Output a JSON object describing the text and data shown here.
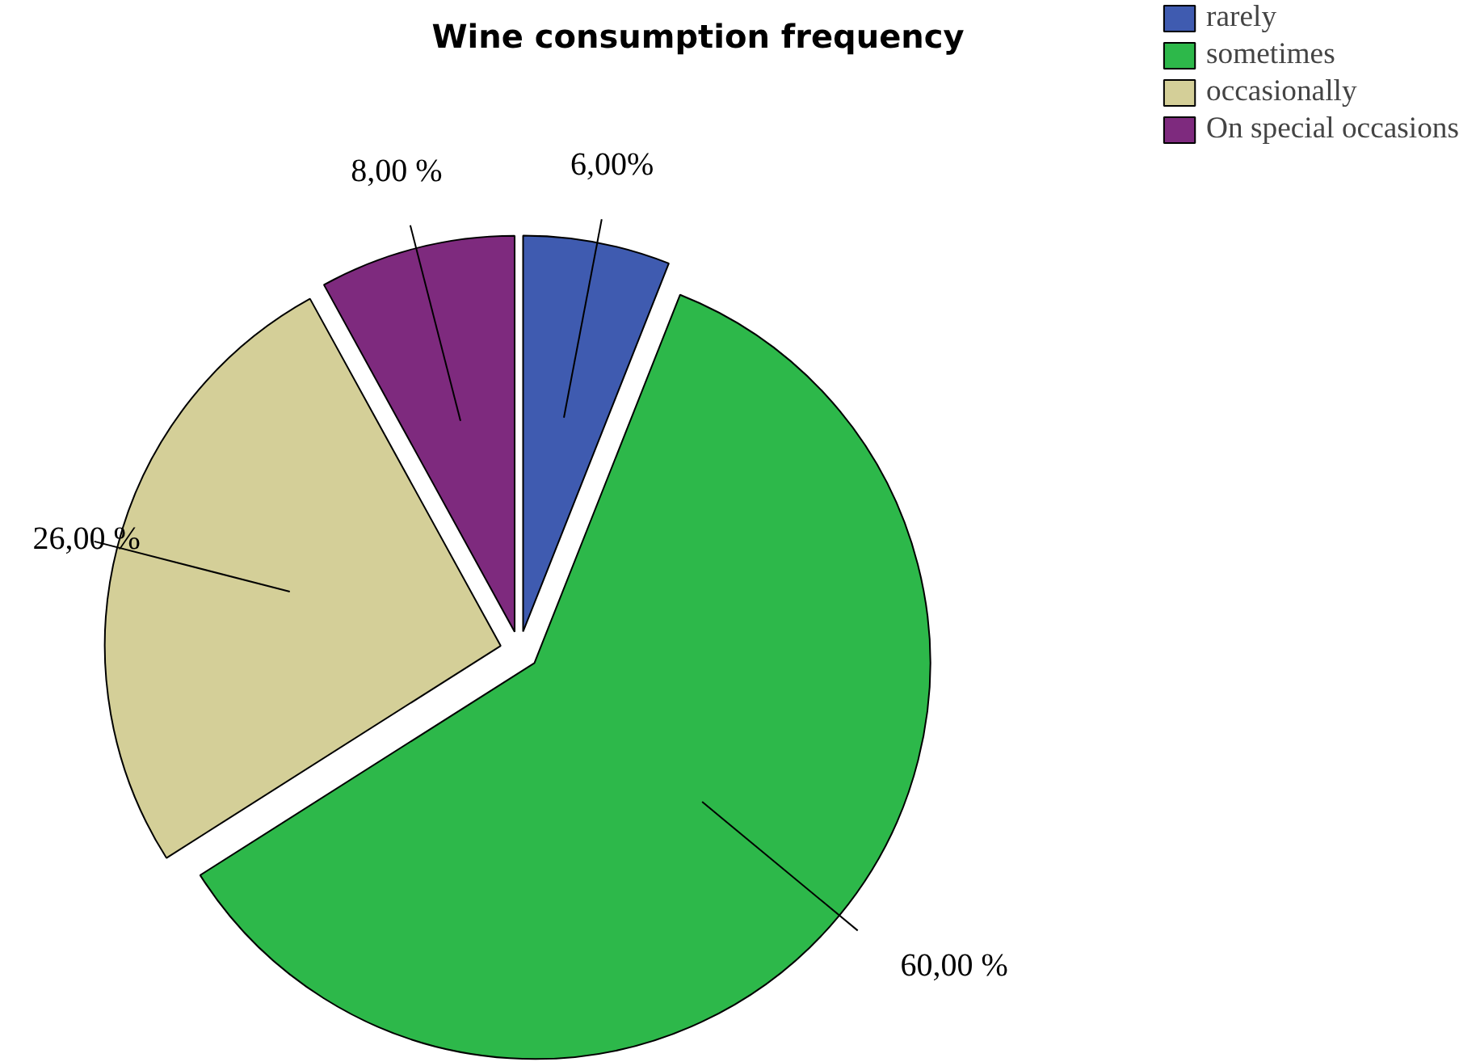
{
  "chart_data": {
    "type": "pie",
    "title": "Wine consumption frequency",
    "categories": [
      "rarely",
      "sometimes",
      "occasionally",
      "On special occasions"
    ],
    "values": [
      6,
      60,
      26,
      8
    ],
    "colors": [
      "#3f5bb0",
      "#2db84a",
      "#d4cf98",
      "#7e2a7e"
    ],
    "value_labels": [
      "6,00%",
      "60,00 %",
      "26,00 %",
      "8,00 %"
    ],
    "legend": "top right"
  }
}
